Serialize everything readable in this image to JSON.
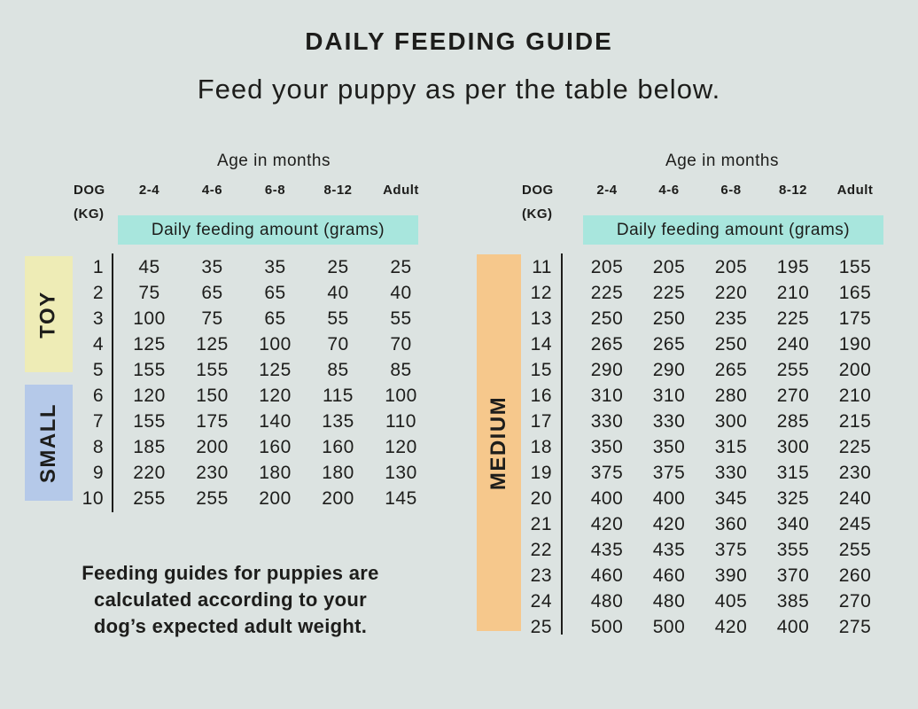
{
  "page": {
    "title": "DAILY FEEDING GUIDE",
    "subtitle": "Feed your puppy as per the table below.",
    "note_lines": [
      "Feeding guides for puppies are",
      "calculated according to your",
      "dog’s expected adult weight."
    ]
  },
  "colors": {
    "background": "#dce3e1",
    "teal_highlight": "#a8e6dd",
    "toy_yellow": "#eeecb6",
    "small_blue": "#b5c9e9",
    "medium_orange": "#f6c88c",
    "text": "#1d1d1b"
  },
  "tables": {
    "left": {
      "age_header": "Age in months",
      "dog_label": "DOG",
      "kg_label": "(KG)",
      "age_columns": [
        "2-4",
        "4-6",
        "6-8",
        "8-12",
        "Adult"
      ],
      "band_label": "Daily feeding amount (grams)",
      "groups": [
        {
          "label": "TOY",
          "kg_range": "1-5"
        },
        {
          "label": "SMALL",
          "kg_range": "6-10"
        }
      ],
      "rows": [
        {
          "kg": "1",
          "values": [
            "45",
            "35",
            "35",
            "25",
            "25"
          ]
        },
        {
          "kg": "2",
          "values": [
            "75",
            "65",
            "65",
            "40",
            "40"
          ]
        },
        {
          "kg": "3",
          "values": [
            "100",
            "75",
            "65",
            "55",
            "55"
          ]
        },
        {
          "kg": "4",
          "values": [
            "125",
            "125",
            "100",
            "70",
            "70"
          ]
        },
        {
          "kg": "5",
          "values": [
            "155",
            "155",
            "125",
            "85",
            "85"
          ]
        },
        {
          "kg": "6",
          "values": [
            "120",
            "150",
            "120",
            "115",
            "100"
          ]
        },
        {
          "kg": "7",
          "values": [
            "155",
            "175",
            "140",
            "135",
            "110"
          ]
        },
        {
          "kg": "8",
          "values": [
            "185",
            "200",
            "160",
            "160",
            "120"
          ]
        },
        {
          "kg": "9",
          "values": [
            "220",
            "230",
            "180",
            "180",
            "130"
          ]
        },
        {
          "kg": "10",
          "values": [
            "255",
            "255",
            "200",
            "200",
            "145"
          ]
        }
      ]
    },
    "right": {
      "age_header": "Age in months",
      "dog_label": "DOG",
      "kg_label": "(KG)",
      "age_columns": [
        "2-4",
        "4-6",
        "6-8",
        "8-12",
        "Adult"
      ],
      "band_label": "Daily feeding amount (grams)",
      "groups": [
        {
          "label": "MEDIUM",
          "kg_range": "11-25"
        }
      ],
      "rows": [
        {
          "kg": "11",
          "values": [
            "205",
            "205",
            "205",
            "195",
            "155"
          ]
        },
        {
          "kg": "12",
          "values": [
            "225",
            "225",
            "220",
            "210",
            "165"
          ]
        },
        {
          "kg": "13",
          "values": [
            "250",
            "250",
            "235",
            "225",
            "175"
          ]
        },
        {
          "kg": "14",
          "values": [
            "265",
            "265",
            "250",
            "240",
            "190"
          ]
        },
        {
          "kg": "15",
          "values": [
            "290",
            "290",
            "265",
            "255",
            "200"
          ]
        },
        {
          "kg": "16",
          "values": [
            "310",
            "310",
            "280",
            "270",
            "210"
          ]
        },
        {
          "kg": "17",
          "values": [
            "330",
            "330",
            "300",
            "285",
            "215"
          ]
        },
        {
          "kg": "18",
          "values": [
            "350",
            "350",
            "315",
            "300",
            "225"
          ]
        },
        {
          "kg": "19",
          "values": [
            "375",
            "375",
            "330",
            "315",
            "230"
          ]
        },
        {
          "kg": "20",
          "values": [
            "400",
            "400",
            "345",
            "325",
            "240"
          ]
        },
        {
          "kg": "21",
          "values": [
            "420",
            "420",
            "360",
            "340",
            "245"
          ]
        },
        {
          "kg": "22",
          "values": [
            "435",
            "435",
            "375",
            "355",
            "255"
          ]
        },
        {
          "kg": "23",
          "values": [
            "460",
            "460",
            "390",
            "370",
            "260"
          ]
        },
        {
          "kg": "24",
          "values": [
            "480",
            "480",
            "405",
            "385",
            "270"
          ]
        },
        {
          "kg": "25",
          "values": [
            "500",
            "500",
            "420",
            "400",
            "275"
          ]
        }
      ]
    }
  }
}
